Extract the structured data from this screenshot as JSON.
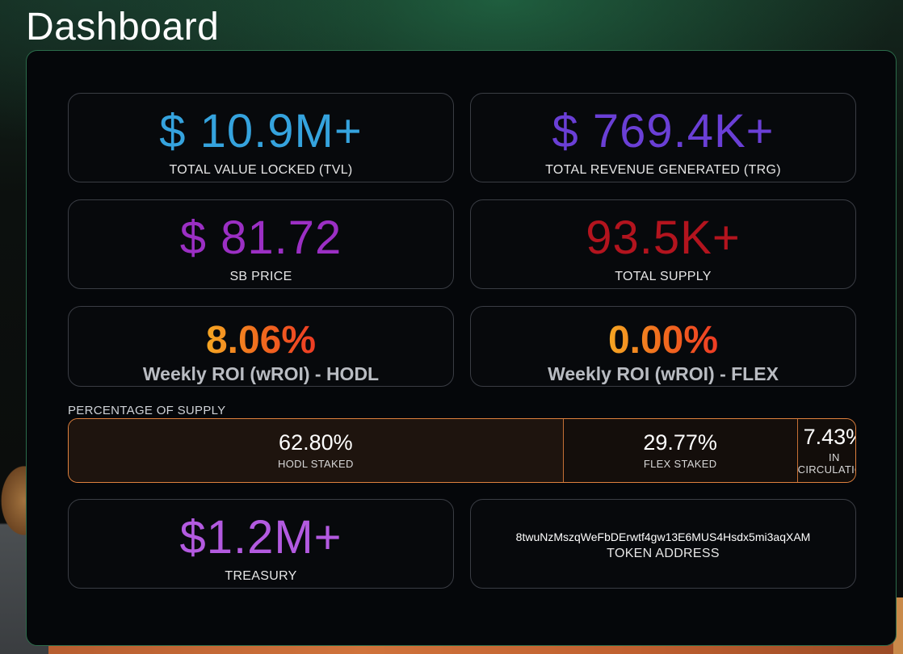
{
  "page": {
    "title": "Dashboard"
  },
  "colors": {
    "tvl": "#35a3de",
    "trg": "#6a3fd6",
    "sb_price": "#9b2fc4",
    "total_supply": "#b3141e",
    "treasury": "#b35ae0",
    "accent_orange": "#e0813e"
  },
  "stats": {
    "tvl": {
      "value": "$ 10.9M+",
      "label": "TOTAL VALUE LOCKED (TVL)"
    },
    "trg": {
      "value": "$ 769.4K+",
      "label": "TOTAL REVENUE GENERATED (TRG)"
    },
    "sb_price": {
      "value": "$ 81.72",
      "label": "SB PRICE"
    },
    "total_supply": {
      "value": "93.5K+",
      "label": "TOTAL SUPPLY"
    }
  },
  "roi": {
    "hodl": {
      "value": "8.06%",
      "label": "Weekly ROI (wROI) - HODL"
    },
    "flex": {
      "value": "0.00%",
      "label": "Weekly ROI (wROI) - FLEX"
    }
  },
  "supply": {
    "heading": "PERCENTAGE OF SUPPLY",
    "segments": [
      {
        "percent": "62.80%",
        "label": "HODL STAKED",
        "fraction": 0.628
      },
      {
        "percent": "29.77%",
        "label": "FLEX STAKED",
        "fraction": 0.2977
      },
      {
        "percent": "7.43%",
        "label": "IN CIRCULATION",
        "fraction": 0.0743
      }
    ]
  },
  "treasury": {
    "value": "$1.2M+",
    "label": "TREASURY"
  },
  "token": {
    "address": "8twuNzMszqWeFbDErwtf4gw13E6MUS4Hsdx5mi3aqXAM",
    "label": "TOKEN ADDRESS"
  }
}
